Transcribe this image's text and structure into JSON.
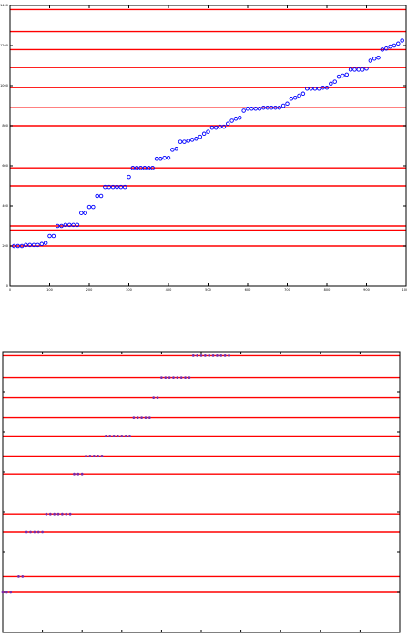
{
  "colors": {
    "background": "#ffffff",
    "reference_line": "#ff0000",
    "marker_top": "#0000ff",
    "marker_bottom": "#7a2ca8",
    "axis": "#000000"
  },
  "chart_data": [
    {
      "type": "scatter",
      "title": "",
      "xlabel": "",
      "ylabel": "",
      "xlim": [
        0,
        1000
      ],
      "ylim": [
        0,
        1400
      ],
      "grid": false,
      "legend": "none",
      "xticks": [
        0,
        100,
        200,
        300,
        400,
        500,
        600,
        700,
        800,
        900,
        1000
      ],
      "yticks": [
        0,
        200,
        400,
        600,
        800,
        1000,
        1200,
        1400
      ],
      "xtick_labels": [
        "0",
        "100",
        "200",
        "300",
        "400",
        "500",
        "600",
        "700",
        "800",
        "900",
        "1000"
      ],
      "ytick_labels": [
        "0",
        "200",
        "400",
        "600",
        "800",
        "1000",
        "1200",
        "1400"
      ],
      "marker": "circle-open",
      "reference_lines_y": [
        200,
        280,
        300,
        500,
        590,
        800,
        890,
        990,
        1090,
        1180,
        1270,
        1380
      ],
      "series": [
        {
          "x": [
            10,
            20,
            30,
            40,
            50,
            60,
            70,
            80,
            90,
            100,
            110,
            120,
            130,
            140,
            150,
            160,
            170,
            180,
            190,
            200,
            210,
            220,
            230,
            240,
            250,
            260,
            270,
            280,
            290,
            300,
            310,
            320,
            330,
            340,
            350,
            360,
            370,
            380,
            390,
            400,
            410,
            420,
            430,
            440,
            450,
            460,
            470,
            480,
            490,
            500,
            510,
            520,
            530,
            540,
            550,
            560,
            570,
            580,
            590,
            600,
            610,
            620,
            630,
            640,
            650,
            660,
            670,
            680,
            690,
            700,
            710,
            720,
            730,
            740,
            750,
            760,
            770,
            780,
            790,
            800,
            810,
            820,
            830,
            840,
            850,
            860,
            870,
            880,
            890,
            900,
            910,
            920,
            930,
            940,
            950,
            960,
            970,
            980,
            990
          ],
          "y": [
            200,
            200,
            200,
            205,
            205,
            205,
            205,
            210,
            215,
            250,
            250,
            300,
            300,
            305,
            305,
            305,
            305,
            365,
            365,
            395,
            395,
            450,
            450,
            495,
            495,
            495,
            495,
            495,
            495,
            545,
            590,
            590,
            590,
            590,
            590,
            590,
            635,
            635,
            640,
            640,
            680,
            685,
            720,
            720,
            725,
            730,
            735,
            745,
            760,
            770,
            790,
            790,
            795,
            795,
            810,
            825,
            835,
            840,
            875,
            885,
            885,
            885,
            885,
            890,
            890,
            890,
            890,
            890,
            900,
            910,
            935,
            940,
            950,
            960,
            985,
            985,
            985,
            985,
            990,
            990,
            1010,
            1020,
            1045,
            1050,
            1055,
            1080,
            1080,
            1080,
            1080,
            1085,
            1125,
            1135,
            1140,
            1180,
            1185,
            1195,
            1200,
            1210,
            1225
          ]
        }
      ]
    },
    {
      "type": "scatter",
      "title": "",
      "xlabel": "",
      "ylabel": "",
      "xlim": [
        0,
        1000
      ],
      "ylim": [
        0,
        1400
      ],
      "grid": false,
      "legend": "none",
      "xticks": [
        0,
        100,
        200,
        300,
        400,
        500,
        600,
        700,
        800,
        900,
        1000
      ],
      "yticks": [
        0,
        200,
        400,
        600,
        800,
        1000,
        1200,
        1400
      ],
      "marker": "circle-filled",
      "reference_lines_y": [
        200,
        280,
        500,
        590,
        790,
        880,
        980,
        1070,
        1170,
        1270,
        1380
      ],
      "series": [
        {
          "x": [
            0,
            10,
            20,
            40,
            50,
            60,
            70,
            80,
            90,
            100,
            110,
            120,
            130,
            140,
            150,
            160,
            170,
            180,
            190,
            200,
            210,
            220,
            230,
            240,
            250,
            260,
            270,
            280,
            290,
            300,
            310,
            320,
            330,
            340,
            350,
            360,
            370,
            380,
            390,
            400,
            410,
            420,
            430,
            440,
            450,
            460,
            470,
            480,
            490,
            500,
            510,
            520,
            530,
            540,
            550,
            560,
            570
          ],
          "y": [
            200,
            200,
            200,
            280,
            280,
            500,
            500,
            500,
            500,
            500,
            590,
            590,
            590,
            590,
            590,
            590,
            590,
            790,
            790,
            790,
            880,
            880,
            880,
            880,
            880,
            980,
            980,
            980,
            980,
            980,
            980,
            980,
            1070,
            1070,
            1070,
            1070,
            1070,
            1170,
            1170,
            1270,
            1270,
            1270,
            1270,
            1270,
            1270,
            1270,
            1270,
            1380,
            1380,
            1380,
            1380,
            1380,
            1380,
            1380,
            1380,
            1380,
            1380
          ]
        }
      ]
    }
  ]
}
